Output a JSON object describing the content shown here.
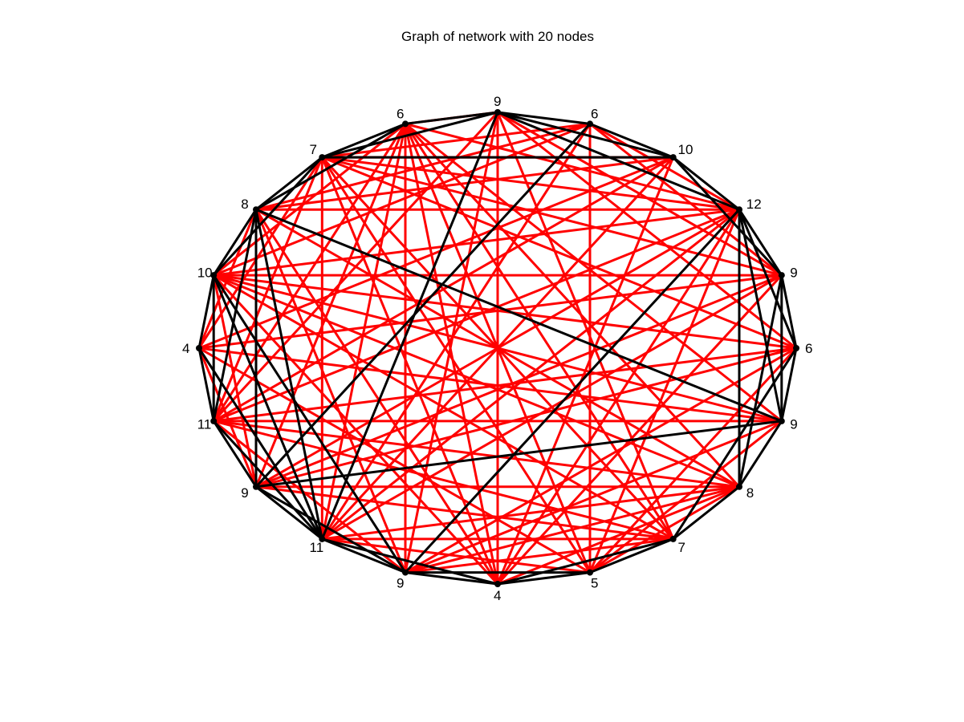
{
  "figure": {
    "title": "Graph of network with 20 nodes"
  },
  "graph": {
    "colors": {
      "edge_black": "#000000",
      "edge_red": "#ff0000",
      "node": "#000000"
    },
    "node_labels": [
      "9",
      "6",
      "10",
      "12",
      "9",
      "6",
      "9",
      "8",
      "7",
      "5",
      "4",
      "9",
      "11",
      "9",
      "11",
      "4",
      "10",
      "8",
      "7",
      "6"
    ],
    "edges_black": [
      [
        0,
        1
      ],
      [
        0,
        2
      ],
      [
        0,
        3
      ],
      [
        0,
        12
      ],
      [
        1,
        2
      ],
      [
        1,
        13
      ],
      [
        2,
        3
      ],
      [
        2,
        18
      ],
      [
        2,
        4
      ],
      [
        3,
        4
      ],
      [
        3,
        5
      ],
      [
        3,
        6
      ],
      [
        3,
        11
      ],
      [
        4,
        5
      ],
      [
        4,
        7
      ],
      [
        4,
        6
      ],
      [
        5,
        6
      ],
      [
        5,
        8
      ],
      [
        6,
        7
      ],
      [
        6,
        13
      ],
      [
        6,
        17
      ],
      [
        7,
        8
      ],
      [
        7,
        3
      ],
      [
        8,
        9
      ],
      [
        8,
        10
      ],
      [
        9,
        10
      ],
      [
        9,
        11
      ],
      [
        10,
        11
      ],
      [
        10,
        12
      ],
      [
        11,
        12
      ],
      [
        11,
        16
      ],
      [
        11,
        13
      ],
      [
        12,
        13
      ],
      [
        12,
        14
      ],
      [
        12,
        15
      ],
      [
        12,
        16
      ],
      [
        13,
        14
      ],
      [
        13,
        17
      ],
      [
        14,
        15
      ],
      [
        14,
        16
      ],
      [
        14,
        17
      ],
      [
        15,
        16
      ],
      [
        16,
        17
      ],
      [
        16,
        18
      ],
      [
        17,
        18
      ],
      [
        17,
        19
      ],
      [
        17,
        12
      ],
      [
        18,
        19
      ],
      [
        18,
        0
      ],
      [
        19,
        0
      ]
    ],
    "edges_red": [
      [
        0,
        19
      ],
      [
        0,
        5
      ],
      [
        0,
        8
      ],
      [
        0,
        10
      ],
      [
        0,
        11
      ],
      [
        0,
        14
      ],
      [
        0,
        4
      ],
      [
        1,
        3
      ],
      [
        1,
        4
      ],
      [
        1,
        17
      ],
      [
        1,
        12
      ],
      [
        1,
        9
      ],
      [
        1,
        18
      ],
      [
        1,
        16
      ],
      [
        2,
        17
      ],
      [
        2,
        14
      ],
      [
        2,
        12
      ],
      [
        2,
        15
      ],
      [
        2,
        10
      ],
      [
        2,
        18
      ],
      [
        3,
        18
      ],
      [
        3,
        17
      ],
      [
        3,
        16
      ],
      [
        3,
        14
      ],
      [
        3,
        13
      ],
      [
        3,
        12
      ],
      [
        3,
        10
      ],
      [
        3,
        9
      ],
      [
        3,
        19
      ],
      [
        4,
        16
      ],
      [
        4,
        13
      ],
      [
        4,
        15
      ],
      [
        4,
        12
      ],
      [
        4,
        10
      ],
      [
        4,
        18
      ],
      [
        5,
        16
      ],
      [
        5,
        14
      ],
      [
        5,
        13
      ],
      [
        5,
        11
      ],
      [
        5,
        9
      ],
      [
        5,
        18
      ],
      [
        6,
        16
      ],
      [
        6,
        14
      ],
      [
        6,
        19
      ],
      [
        6,
        11
      ],
      [
        6,
        9
      ],
      [
        6,
        15
      ],
      [
        7,
        13
      ],
      [
        7,
        12
      ],
      [
        7,
        11
      ],
      [
        7,
        10
      ],
      [
        7,
        9
      ],
      [
        7,
        19
      ],
      [
        7,
        17
      ],
      [
        7,
        16
      ],
      [
        7,
        14
      ],
      [
        8,
        14
      ],
      [
        8,
        13
      ],
      [
        8,
        11
      ],
      [
        8,
        12
      ],
      [
        8,
        16
      ],
      [
        8,
        19
      ],
      [
        8,
        18
      ],
      [
        9,
        15
      ],
      [
        9,
        19
      ],
      [
        9,
        12
      ],
      [
        9,
        18
      ],
      [
        10,
        18
      ],
      [
        10,
        19
      ],
      [
        10,
        16
      ],
      [
        10,
        17
      ],
      [
        11,
        14
      ],
      [
        11,
        19
      ],
      [
        11,
        17
      ],
      [
        12,
        19
      ],
      [
        12,
        18
      ],
      [
        13,
        19
      ],
      [
        13,
        16
      ],
      [
        13,
        15
      ],
      [
        14,
        19
      ],
      [
        14,
        18
      ],
      [
        15,
        17
      ],
      [
        15,
        18
      ],
      [
        16,
        19
      ],
      [
        19,
        11
      ]
    ]
  }
}
